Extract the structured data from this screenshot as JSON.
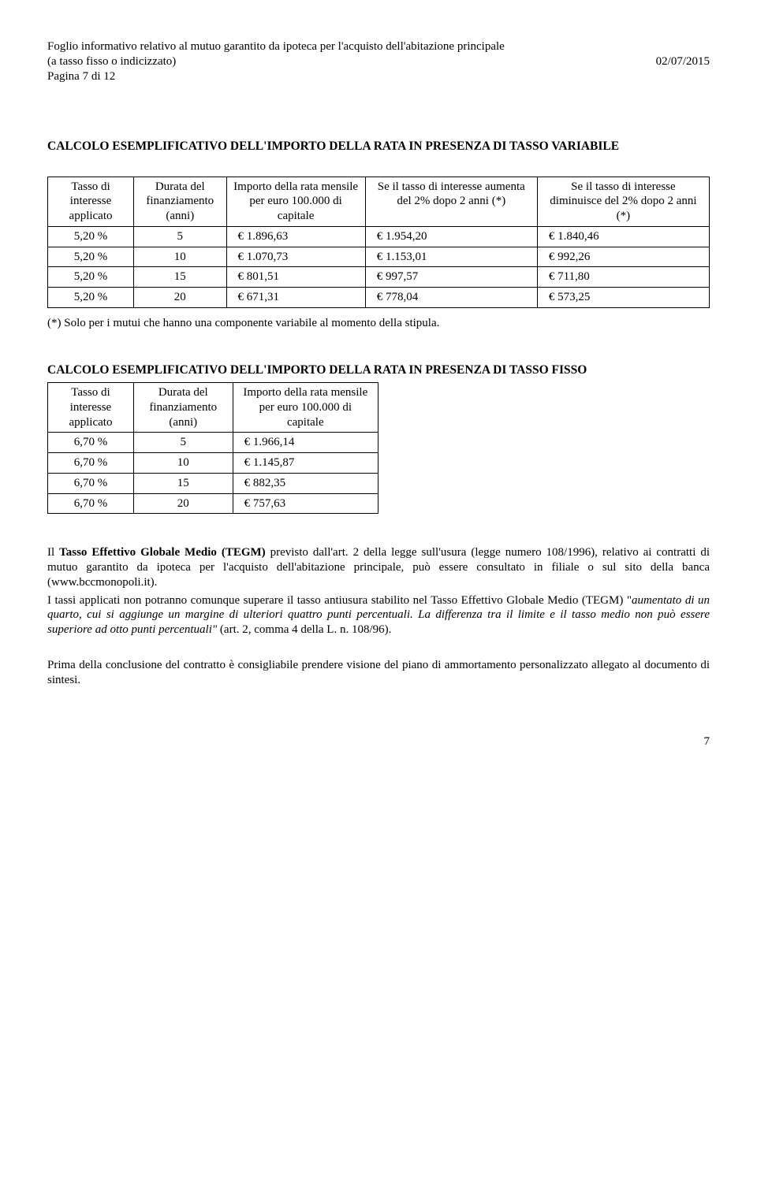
{
  "header": {
    "line1": "Foglio informativo relativo al mutuo garantito da ipoteca per l'acquisto dell'abitazione principale",
    "line2_left": "(a tasso fisso o indicizzato)",
    "line2_right": "02/07/2015",
    "line3": "Pagina 7 di 12"
  },
  "section1": {
    "title": "CALCOLO ESEMPLIFICATIVO DELL'IMPORTO DELLA RATA IN PRESENZA DI TASSO VARIABILE",
    "headers": {
      "c1": "Tasso di interesse applicato",
      "c2": "Durata del finanziamento (anni)",
      "c3": "Importo della rata mensile per euro 100.000 di capitale",
      "c4": "Se il tasso di interesse aumenta del 2% dopo 2 anni (*)",
      "c5": "Se il tasso di interesse diminuisce del 2% dopo 2 anni (*)"
    },
    "rows": [
      {
        "c1": "5,20 %",
        "c2": "5",
        "c3": "€ 1.896,63",
        "c4": "€ 1.954,20",
        "c5": "€ 1.840,46"
      },
      {
        "c1": "5,20 %",
        "c2": "10",
        "c3": "€ 1.070,73",
        "c4": "€ 1.153,01",
        "c5": "€ 992,26"
      },
      {
        "c1": "5,20 %",
        "c2": "15",
        "c3": "€ 801,51",
        "c4": "€ 997,57",
        "c5": "€ 711,80"
      },
      {
        "c1": "5,20 %",
        "c2": "20",
        "c3": "€ 671,31",
        "c4": "€ 778,04",
        "c5": "€ 573,25"
      }
    ],
    "note": "(*) Solo per i mutui che hanno una componente variabile al momento della stipula."
  },
  "section2": {
    "title": "CALCOLO ESEMPLIFICATIVO DELL'IMPORTO DELLA RATA IN PRESENZA DI TASSO FISSO",
    "headers": {
      "c1": "Tasso di interesse applicato",
      "c2": "Durata del finanziamento (anni)",
      "c3": "Importo della rata mensile per euro 100.000 di capitale"
    },
    "rows": [
      {
        "c1": "6,70 %",
        "c2": "5",
        "c3": "€ 1.966,14"
      },
      {
        "c1": "6,70 %",
        "c2": "10",
        "c3": "€ 1.145,87"
      },
      {
        "c1": "6,70 %",
        "c2": "15",
        "c3": "€ 882,35"
      },
      {
        "c1": "6,70 %",
        "c2": "20",
        "c3": "€ 757,63"
      }
    ]
  },
  "para1": {
    "pre": "Il ",
    "bold": "Tasso Effettivo Globale Medio (TEGM)",
    "post": " previsto dall'art. 2 della legge sull'usura (legge numero 108/1996), relativo ai contratti di mutuo garantito da ipoteca per l'acquisto dell'abitazione principale, può essere consultato in filiale o sul sito della banca  (www.bccmonopoli.it)."
  },
  "para2": {
    "a": "I tassi applicati non potranno comunque superare il tasso antiusura stabilito nel Tasso Effettivo Globale Medio (TEGM) ",
    "it1": "aumentato di un quarto, cui si aggiunge un margine di ulteriori quattro punti percentuali. La differenza tra il limite e il tasso medio non può essere superiore ad otto punti percentuali\" ",
    "b": "(art. 2, comma 4 della L. n. 108/96)."
  },
  "para3": "Prima della conclusione del contratto è consigliabile prendere visione del piano di ammortamento personalizzato allegato al documento di sintesi.",
  "page_number": "7"
}
